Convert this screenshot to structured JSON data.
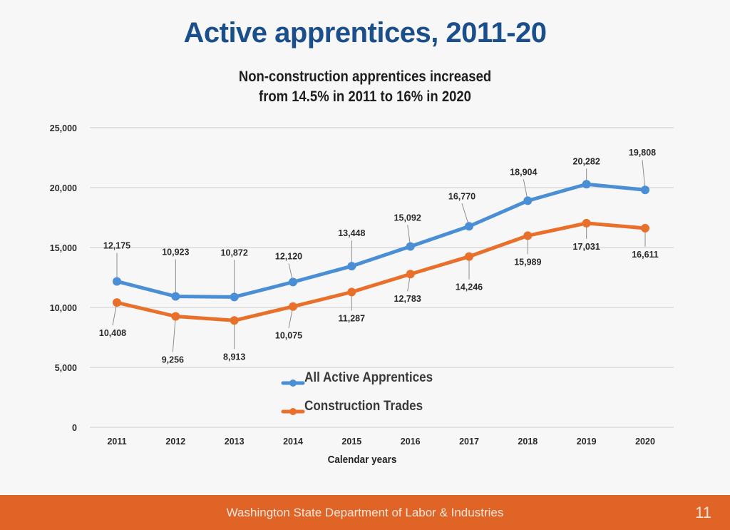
{
  "header": {
    "title": "Active apprentices, 2011-20",
    "subtitle_line1": "Non-construction apprentices increased",
    "subtitle_line2": "from 14.5% in 2011 to 16% in 2020"
  },
  "footer": {
    "organization": "Washington State Department of Labor & Industries",
    "page_number": "11"
  },
  "chart_data": {
    "type": "line",
    "title": "Active apprentices, 2011-20",
    "subtitle": "Non-construction apprentices increased from 14.5% in 2011 to 16% in 2020",
    "xlabel": "Calendar years",
    "ylabel": "",
    "x": [
      "2011",
      "2012",
      "2013",
      "2014",
      "2015",
      "2016",
      "2017",
      "2018",
      "2019",
      "2020"
    ],
    "ylim": [
      0,
      25000
    ],
    "yticks": [
      0,
      5000,
      10000,
      15000,
      20000,
      25000
    ],
    "ytick_labels": [
      "0",
      "5,000",
      "10,000",
      "15,000",
      "20,000",
      "25,000"
    ],
    "grid": true,
    "legend_position": "center-bottom",
    "series": [
      {
        "name": "All Active Apprentices",
        "color": "#4a8fd6",
        "label_side": "above",
        "values": [
          12175,
          10923,
          10872,
          12120,
          13448,
          15092,
          16770,
          18904,
          20282,
          19808
        ],
        "labels": [
          "12,175",
          "10,923",
          "10,872",
          "12,120",
          "13,448",
          "15,092",
          "16,770",
          "18,904",
          "20,282",
          "19,808"
        ]
      },
      {
        "name": "Construction Trades",
        "color": "#e8702a",
        "label_side": "below",
        "values": [
          10408,
          9256,
          8913,
          10075,
          11287,
          12783,
          14246,
          15989,
          17031,
          16611
        ],
        "labels": [
          "10,408",
          "9,256",
          "8,913",
          "10,075",
          "11,287",
          "12,783",
          "14,246",
          "15,989",
          "17,031",
          "16,611"
        ]
      }
    ]
  }
}
